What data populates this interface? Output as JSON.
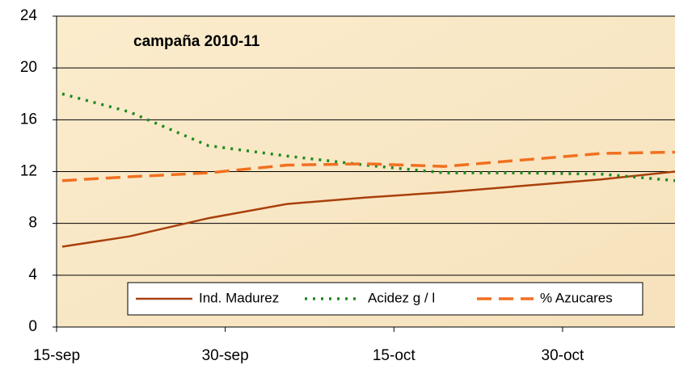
{
  "chart_data": {
    "type": "line",
    "annotation": "campaña 2010-11",
    "x": [
      0.5,
      6.5,
      13.5,
      20.5,
      27.5,
      34.5,
      41.5,
      48.5,
      55
    ],
    "series": [
      {
        "name": "Ind. Madurez",
        "color": "#a9400c",
        "dash": "solid",
        "values": [
          6.2,
          7.0,
          8.4,
          9.5,
          10.0,
          10.4,
          10.9,
          11.4,
          12.0
        ]
      },
      {
        "name": "Acidez g / l",
        "color": "#1e8a1e",
        "dash": "dotted",
        "values": [
          18.0,
          16.6,
          14.0,
          13.2,
          12.5,
          11.9,
          11.9,
          11.8,
          11.3
        ]
      },
      {
        "name": "% Azucares",
        "color": "#f07020",
        "dash": "dashed",
        "values": [
          11.3,
          11.6,
          11.9,
          12.5,
          12.6,
          12.4,
          12.9,
          13.4,
          13.5
        ]
      }
    ],
    "xlim": [
      0,
      55
    ],
    "xticks": [
      {
        "value": 0,
        "label": "15-sep"
      },
      {
        "value": 15,
        "label": "30-sep"
      },
      {
        "value": 30,
        "label": "15-oct"
      },
      {
        "value": 45,
        "label": "30-oct"
      }
    ],
    "ylim": [
      0,
      24
    ],
    "yticks": [
      0,
      4,
      8,
      12,
      16,
      20,
      24
    ],
    "grid": true,
    "legend": "bottom"
  }
}
